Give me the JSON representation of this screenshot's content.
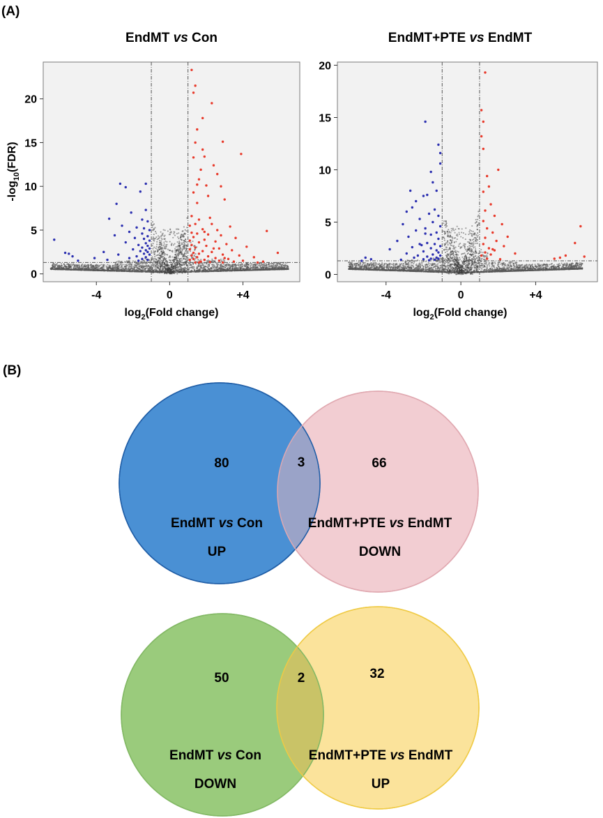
{
  "panels": {
    "a_label": "(A)",
    "b_label": "(B)"
  },
  "chart_data": [
    {
      "type": "scatter",
      "title_prefix": "EndMT ",
      "title_vs": "vs",
      "title_suffix": " Con",
      "xlabel_pre": "log",
      "xlabel_sub": "2",
      "xlabel_post": "(Fold change)",
      "ylabel_pre": "-log",
      "ylabel_sub": "10",
      "ylabel_post": "(FDR)",
      "xlim": [
        -6.9,
        7.1
      ],
      "ylim": [
        -0.9,
        24.2
      ],
      "xticks": [
        -4,
        0,
        4
      ],
      "xtick_labels": [
        "-4",
        "0",
        "+4"
      ],
      "yticks": [
        0,
        5,
        10,
        15,
        20
      ],
      "ytick_labels": [
        "0",
        "5",
        "10",
        "15",
        "20"
      ],
      "fc_threshold": 1,
      "fdr_threshold": 1.3,
      "grid": false,
      "colors": {
        "up": "#e8392a",
        "down": "#2b2fb0",
        "ns": "#555555",
        "panel_bg": "#f2f2f2"
      },
      "up_points": [
        [
          1.2,
          23.3
        ],
        [
          1.4,
          21.5
        ],
        [
          1.3,
          20.7
        ],
        [
          2.3,
          19.5
        ],
        [
          1.8,
          17.8
        ],
        [
          1.5,
          16.5
        ],
        [
          2.9,
          15.1
        ],
        [
          1.4,
          15.0
        ],
        [
          1.8,
          14.2
        ],
        [
          3.9,
          13.7
        ],
        [
          1.9,
          13.4
        ],
        [
          1.3,
          13.3
        ],
        [
          2.4,
          12.4
        ],
        [
          1.7,
          11.9
        ],
        [
          2.6,
          11.4
        ],
        [
          1.6,
          10.8
        ],
        [
          1.5,
          10.2
        ],
        [
          2.0,
          10.1
        ],
        [
          2.8,
          10.0
        ],
        [
          1.3,
          9.3
        ],
        [
          2.1,
          8.9
        ],
        [
          3.0,
          8.5
        ],
        [
          1.2,
          6.6
        ],
        [
          1.6,
          6.2
        ],
        [
          1.4,
          5.7
        ],
        [
          2.3,
          5.7
        ],
        [
          1.1,
          5.5
        ],
        [
          3.3,
          5.4
        ],
        [
          1.8,
          5.1
        ],
        [
          2.6,
          5.0
        ],
        [
          5.3,
          4.9
        ],
        [
          1.2,
          4.7
        ],
        [
          1.5,
          4.6
        ],
        [
          2.1,
          4.5
        ],
        [
          2.8,
          4.4
        ],
        [
          1.3,
          4.2
        ],
        [
          3.6,
          4.1
        ],
        [
          1.9,
          3.9
        ],
        [
          1.1,
          3.8
        ],
        [
          2.5,
          3.7
        ],
        [
          1.6,
          3.6
        ],
        [
          3.1,
          3.4
        ],
        [
          1.2,
          3.3
        ],
        [
          2.0,
          3.2
        ],
        [
          4.2,
          3.1
        ],
        [
          1.4,
          3.0
        ],
        [
          2.7,
          2.9
        ],
        [
          1.1,
          2.8
        ],
        [
          3.4,
          2.7
        ],
        [
          1.8,
          2.6
        ],
        [
          2.3,
          2.5
        ],
        [
          1.3,
          2.4
        ],
        [
          5.9,
          2.4
        ],
        [
          1.6,
          2.3
        ],
        [
          2.9,
          2.2
        ],
        [
          1.2,
          2.1
        ],
        [
          3.8,
          2.1
        ],
        [
          2.1,
          2.0
        ],
        [
          1.5,
          1.9
        ],
        [
          4.6,
          1.9
        ],
        [
          2.5,
          1.8
        ],
        [
          1.3,
          1.7
        ],
        [
          3.2,
          1.7
        ],
        [
          1.9,
          1.6
        ],
        [
          1.1,
          1.6
        ],
        [
          2.7,
          1.5
        ],
        [
          4.0,
          1.5
        ],
        [
          1.7,
          1.4
        ],
        [
          5.1,
          1.4
        ],
        [
          3.5,
          1.4
        ],
        [
          2.2,
          1.35
        ],
        [
          1.4,
          1.3
        ],
        [
          2.9,
          1.3
        ],
        [
          4.8,
          1.3
        ],
        [
          1.6,
          1.3
        ],
        [
          3.0,
          1.8
        ],
        [
          2.4,
          2.9
        ],
        [
          1.9,
          4.8
        ],
        [
          2.2,
          6.4
        ],
        [
          1.5,
          8.1
        ]
      ],
      "down_points": [
        [
          -6.3,
          3.9
        ],
        [
          -2.7,
          10.3
        ],
        [
          -2.4,
          9.9
        ],
        [
          -1.3,
          10.3
        ],
        [
          -1.6,
          9.4
        ],
        [
          -2.9,
          8.0
        ],
        [
          -1.3,
          7.3
        ],
        [
          -2.1,
          7.0
        ],
        [
          -3.3,
          6.3
        ],
        [
          -1.5,
          6.2
        ],
        [
          -1.2,
          6.0
        ],
        [
          -2.6,
          5.5
        ],
        [
          -1.8,
          5.3
        ],
        [
          -1.4,
          5.2
        ],
        [
          -1.1,
          5.0
        ],
        [
          -2.2,
          4.8
        ],
        [
          -1.5,
          4.6
        ],
        [
          -3.0,
          4.4
        ],
        [
          -1.2,
          4.3
        ],
        [
          -1.9,
          4.1
        ],
        [
          -1.4,
          4.0
        ],
        [
          -1.1,
          3.8
        ],
        [
          -2.4,
          3.6
        ],
        [
          -1.3,
          3.5
        ],
        [
          -1.7,
          3.3
        ],
        [
          -1.2,
          3.2
        ],
        [
          -1.5,
          3.0
        ],
        [
          -1.1,
          2.9
        ],
        [
          -2.0,
          2.8
        ],
        [
          -1.3,
          2.7
        ],
        [
          -1.6,
          2.6
        ],
        [
          -3.6,
          2.5
        ],
        [
          -1.2,
          2.5
        ],
        [
          -5.7,
          2.4
        ],
        [
          -5.5,
          2.3
        ],
        [
          -1.4,
          2.3
        ],
        [
          -2.8,
          2.2
        ],
        [
          -1.1,
          2.2
        ],
        [
          -5.3,
          2.0
        ],
        [
          -1.8,
          2.0
        ],
        [
          -1.3,
          1.9
        ],
        [
          -4.1,
          1.8
        ],
        [
          -2.2,
          1.8
        ],
        [
          -1.5,
          1.7
        ],
        [
          -1.2,
          1.6
        ],
        [
          -3.4,
          1.6
        ],
        [
          -5.0,
          1.5
        ],
        [
          -1.7,
          1.5
        ]
      ],
      "ns_density": [
        [
          -6.5,
          -3.0,
          0.7
        ],
        [
          -3.0,
          -1.5,
          1.2
        ],
        [
          -1.5,
          -0.6,
          1.6
        ],
        [
          -0.6,
          0.6,
          5.0
        ],
        [
          0.6,
          1.5,
          3.5
        ],
        [
          1.5,
          3.0,
          1.4
        ],
        [
          3.0,
          6.5,
          0.8
        ]
      ]
    },
    {
      "type": "scatter",
      "title_prefix": "EndMT+PTE ",
      "title_vs": "vs",
      "title_suffix": " EndMT",
      "xlabel_pre": "log",
      "xlabel_sub": "2",
      "xlabel_post": "(Fold change)",
      "xlim": [
        -6.6,
        7.3
      ],
      "ylim": [
        -0.7,
        20.3
      ],
      "xticks": [
        -4,
        0,
        4
      ],
      "xtick_labels": [
        "-4",
        "0",
        "+4"
      ],
      "yticks": [
        0,
        5,
        10,
        15,
        20
      ],
      "ytick_labels": [
        "0",
        "5",
        "10",
        "15",
        "20"
      ],
      "fc_threshold": 1,
      "fdr_threshold": 1.3,
      "grid": false,
      "colors": {
        "up": "#e8392a",
        "down": "#2b2fb0",
        "ns": "#555555",
        "panel_bg": "#f2f2f2"
      },
      "up_points": [
        [
          1.3,
          19.3
        ],
        [
          1.1,
          15.7
        ],
        [
          1.2,
          14.6
        ],
        [
          1.1,
          13.2
        ],
        [
          1.2,
          12.0
        ],
        [
          2.0,
          10.0
        ],
        [
          1.4,
          9.4
        ],
        [
          1.5,
          8.4
        ],
        [
          1.2,
          7.9
        ],
        [
          1.6,
          6.7
        ],
        [
          1.3,
          6.1
        ],
        [
          1.8,
          5.6
        ],
        [
          1.2,
          5.1
        ],
        [
          2.2,
          4.8
        ],
        [
          6.4,
          4.6
        ],
        [
          1.4,
          4.4
        ],
        [
          1.7,
          4.0
        ],
        [
          2.5,
          3.6
        ],
        [
          1.3,
          3.5
        ],
        [
          1.9,
          3.2
        ],
        [
          6.1,
          3.0
        ],
        [
          1.2,
          2.9
        ],
        [
          2.3,
          2.7
        ],
        [
          1.5,
          2.5
        ],
        [
          1.8,
          2.3
        ],
        [
          1.3,
          2.1
        ],
        [
          2.9,
          2.0
        ],
        [
          1.6,
          1.9
        ],
        [
          5.6,
          1.8
        ],
        [
          1.1,
          1.8
        ],
        [
          5.3,
          1.6
        ],
        [
          5.0,
          1.5
        ],
        [
          1.4,
          1.5
        ],
        [
          2.1,
          1.45
        ],
        [
          6.6,
          1.7
        ],
        [
          1.7,
          2.4
        ]
      ],
      "down_points": [
        [
          -1.9,
          14.6
        ],
        [
          -1.2,
          12.4
        ],
        [
          -1.1,
          11.6
        ],
        [
          -1.1,
          10.6
        ],
        [
          -1.6,
          9.8
        ],
        [
          -1.5,
          8.8
        ],
        [
          -2.7,
          8.0
        ],
        [
          -1.3,
          8.0
        ],
        [
          -1.8,
          7.6
        ],
        [
          -2.0,
          7.5
        ],
        [
          -2.4,
          7.0
        ],
        [
          -2.6,
          6.4
        ],
        [
          -1.4,
          6.2
        ],
        [
          -2.9,
          6.0
        ],
        [
          -1.7,
          5.8
        ],
        [
          -1.2,
          5.6
        ],
        [
          -2.2,
          5.3
        ],
        [
          -1.5,
          5.0
        ],
        [
          -3.1,
          4.8
        ],
        [
          -1.1,
          4.6
        ],
        [
          -1.9,
          4.4
        ],
        [
          -2.4,
          4.2
        ],
        [
          -1.3,
          4.0
        ],
        [
          -1.6,
          3.8
        ],
        [
          -2.8,
          3.6
        ],
        [
          -1.2,
          3.4
        ],
        [
          -3.4,
          3.2
        ],
        [
          -1.8,
          3.0
        ],
        [
          -1.4,
          2.9
        ],
        [
          -2.1,
          2.8
        ],
        [
          -1.1,
          2.7
        ],
        [
          -2.6,
          2.6
        ],
        [
          -1.6,
          2.5
        ],
        [
          -3.8,
          2.4
        ],
        [
          -1.3,
          2.3
        ],
        [
          -2.0,
          2.2
        ],
        [
          -1.2,
          2.1
        ],
        [
          -2.9,
          2.0
        ],
        [
          -1.5,
          1.9
        ],
        [
          -2.3,
          1.8
        ],
        [
          -1.1,
          1.8
        ],
        [
          -1.8,
          1.7
        ],
        [
          -1.3,
          1.6
        ],
        [
          -2.5,
          1.6
        ],
        [
          -5.1,
          1.6
        ],
        [
          -1.6,
          1.5
        ],
        [
          -1.2,
          1.5
        ],
        [
          -4.8,
          1.45
        ],
        [
          -2.0,
          1.45
        ],
        [
          -1.4,
          1.4
        ],
        [
          -3.2,
          1.4
        ],
        [
          -5.3,
          1.3
        ],
        [
          -1.7,
          1.35
        ],
        [
          -2.2,
          2.9
        ],
        [
          -1.9,
          3.9
        ]
      ],
      "ns_density": [
        [
          -6.0,
          -3.0,
          0.7
        ],
        [
          -3.0,
          -1.5,
          1.1
        ],
        [
          -1.5,
          -0.6,
          1.5
        ],
        [
          -0.6,
          0.6,
          4.6
        ],
        [
          0.6,
          1.5,
          2.2
        ],
        [
          1.5,
          3.0,
          0.9
        ],
        [
          3.0,
          6.5,
          0.6
        ]
      ]
    },
    {
      "type": "venn",
      "left": {
        "count": "80",
        "label_prefix": "EndMT ",
        "label_vs": "vs",
        "label_suffix": " Con",
        "direction": "UP",
        "fill": "#4a90d4",
        "stroke": "#1f5da6"
      },
      "right": {
        "count": "66",
        "label_prefix": "EndMT+PTE ",
        "label_vs": "vs",
        "label_suffix": " EndMT",
        "direction": "DOWN",
        "fill": "#f2cdd2",
        "stroke": "#e0a8b0"
      },
      "overlap_count": "3",
      "overlap_color": "#9aa3c8"
    },
    {
      "type": "venn",
      "left": {
        "count": "50",
        "label_prefix": "EndMT ",
        "label_vs": "vs",
        "label_suffix": " Con",
        "direction": "DOWN",
        "fill": "#9acb7c",
        "stroke": "#82b864"
      },
      "right": {
        "count": "32",
        "label_prefix": "EndMT+PTE ",
        "label_vs": "vs",
        "label_suffix": " EndMT",
        "direction": "UP",
        "fill": "#fbe39b",
        "stroke": "#efca44"
      },
      "overlap_count": "2",
      "overlap_color": "#c9c367"
    }
  ]
}
